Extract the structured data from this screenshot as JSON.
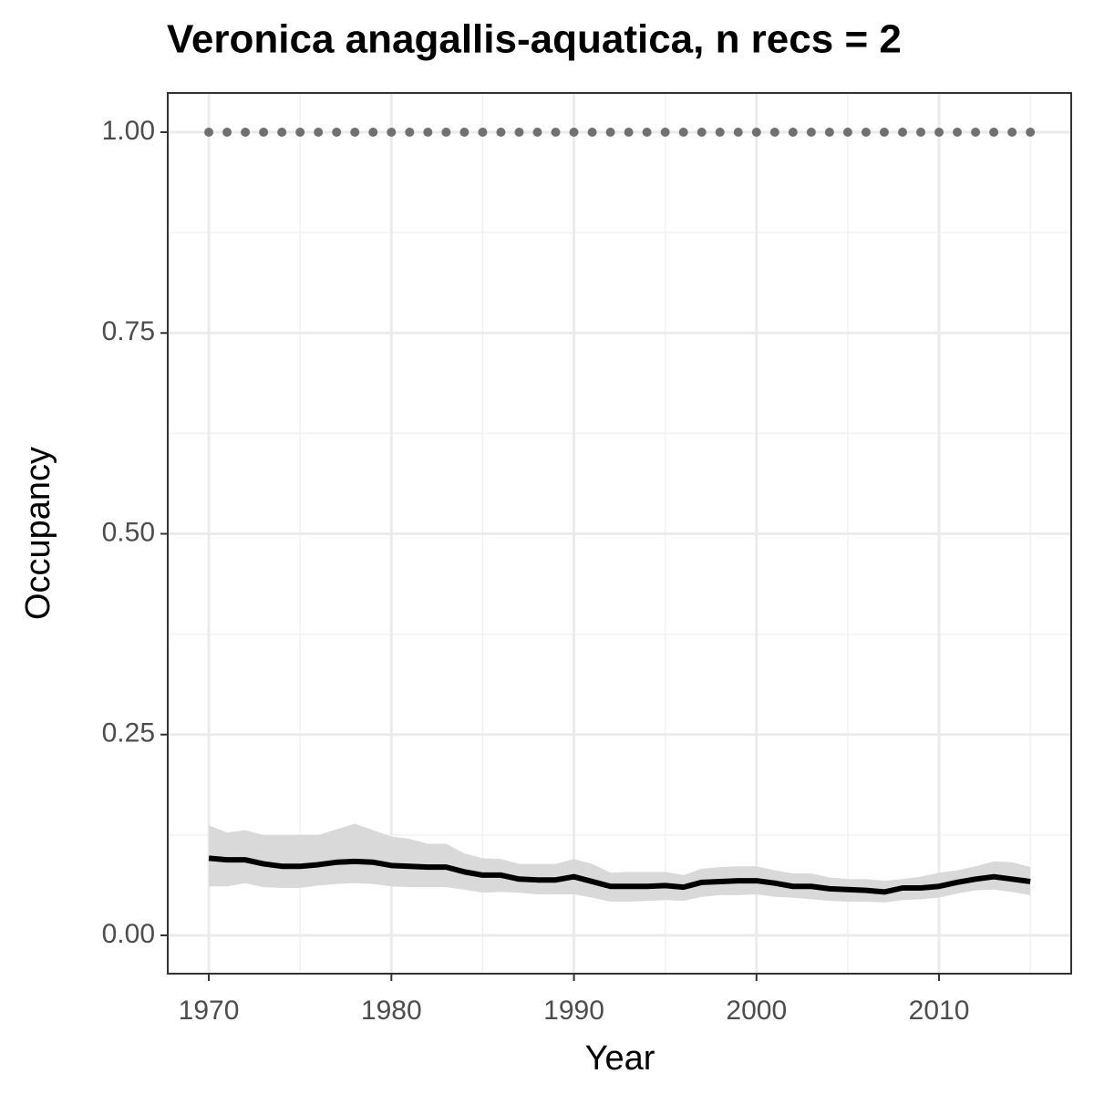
{
  "chart_data": {
    "type": "line",
    "title": "Veronica anagallis-aquatica, n recs = 2",
    "x_label": "Year",
    "y_label": "Occupancy",
    "x": [
      1970,
      1971,
      1972,
      1973,
      1974,
      1975,
      1976,
      1977,
      1978,
      1979,
      1980,
      1981,
      1982,
      1983,
      1984,
      1985,
      1986,
      1987,
      1988,
      1989,
      1990,
      1991,
      1992,
      1993,
      1994,
      1995,
      1996,
      1997,
      1998,
      1999,
      2000,
      2001,
      2002,
      2003,
      2004,
      2005,
      2006,
      2007,
      2008,
      2009,
      2010,
      2011,
      2012,
      2013,
      2014,
      2015
    ],
    "line": {
      "color": "#000000",
      "values": [
        0.096,
        0.094,
        0.094,
        0.089,
        0.086,
        0.086,
        0.088,
        0.091,
        0.092,
        0.091,
        0.087,
        0.086,
        0.085,
        0.085,
        0.079,
        0.075,
        0.075,
        0.07,
        0.069,
        0.069,
        0.073,
        0.067,
        0.061,
        0.061,
        0.061,
        0.062,
        0.06,
        0.066,
        0.067,
        0.068,
        0.068,
        0.065,
        0.061,
        0.061,
        0.058,
        0.057,
        0.056,
        0.054,
        0.059,
        0.059,
        0.061,
        0.066,
        0.07,
        0.073,
        0.07,
        0.067
      ]
    },
    "band": {
      "color": "#d9d9d9",
      "upper": [
        0.137,
        0.128,
        0.131,
        0.125,
        0.125,
        0.125,
        0.125,
        0.132,
        0.139,
        0.131,
        0.123,
        0.12,
        0.114,
        0.114,
        0.102,
        0.096,
        0.095,
        0.089,
        0.089,
        0.089,
        0.095,
        0.089,
        0.078,
        0.079,
        0.079,
        0.079,
        0.075,
        0.083,
        0.085,
        0.086,
        0.086,
        0.081,
        0.077,
        0.077,
        0.072,
        0.07,
        0.07,
        0.068,
        0.07,
        0.073,
        0.078,
        0.081,
        0.086,
        0.092,
        0.091,
        0.085
      ],
      "lower": [
        0.061,
        0.061,
        0.065,
        0.06,
        0.059,
        0.059,
        0.062,
        0.064,
        0.065,
        0.064,
        0.061,
        0.06,
        0.06,
        0.06,
        0.057,
        0.053,
        0.054,
        0.053,
        0.051,
        0.051,
        0.051,
        0.047,
        0.042,
        0.042,
        0.043,
        0.044,
        0.043,
        0.048,
        0.05,
        0.05,
        0.051,
        0.048,
        0.047,
        0.045,
        0.043,
        0.042,
        0.042,
        0.041,
        0.044,
        0.045,
        0.047,
        0.052,
        0.056,
        0.057,
        0.054,
        0.05
      ]
    },
    "points": {
      "color": "#707070",
      "values": [
        1,
        1,
        1,
        1,
        1,
        1,
        1,
        1,
        1,
        1,
        1,
        1,
        1,
        1,
        1,
        1,
        1,
        1,
        1,
        1,
        1,
        1,
        1,
        1,
        1,
        1,
        1,
        1,
        1,
        1,
        1,
        1,
        1,
        1,
        1,
        1,
        1,
        1,
        1,
        1,
        1,
        1,
        1,
        1,
        1,
        1
      ]
    },
    "xlim": [
      1967.75,
      2017.24
    ],
    "ylim": [
      -0.0477,
      1.0488
    ],
    "xticks": [
      1970,
      1980,
      1990,
      2000,
      2010
    ],
    "yticks": [
      {
        "value": 0,
        "label": "0.00"
      },
      {
        "value": 0.25,
        "label": "0.25"
      },
      {
        "value": 0.5,
        "label": "0.50"
      },
      {
        "value": 0.75,
        "label": "0.75"
      },
      {
        "value": 1,
        "label": "1.00"
      }
    ],
    "x_minor_grid": [
      1975,
      1985,
      1995,
      2005,
      2015
    ],
    "y_minor_grid": [
      0.125,
      0.375,
      0.625,
      0.875
    ],
    "grid": true
  }
}
